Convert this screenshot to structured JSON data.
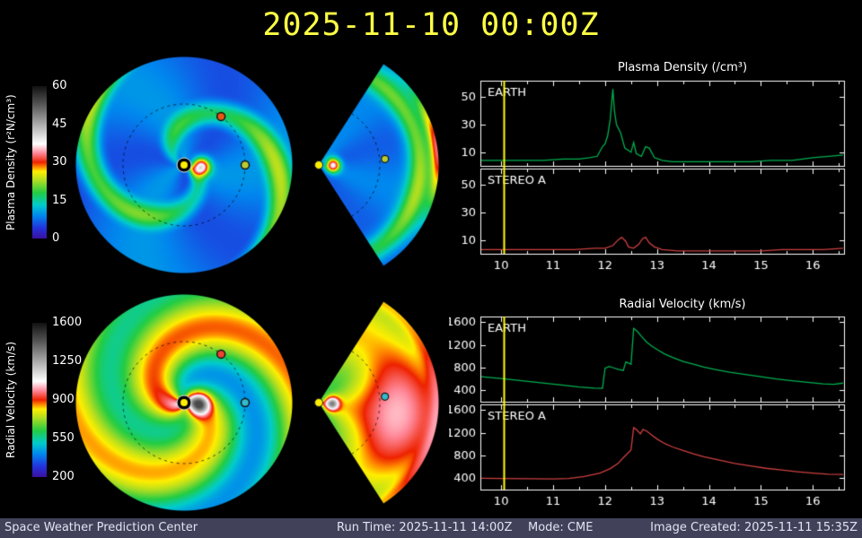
{
  "title": "2025-11-10 00:00Z",
  "colors": {
    "background": "#000000",
    "title_text": "#ffff44",
    "axis": "#ffffff",
    "timeline": "#ffff00",
    "sun": "#ffee00",
    "footer_bg": "#41415a",
    "footer_text": "#e2e2f2"
  },
  "colormap": [
    {
      "p": 0.0,
      "c": "#3a10a0"
    },
    {
      "p": 0.07,
      "c": "#2233dd"
    },
    {
      "p": 0.15,
      "c": "#0088ee"
    },
    {
      "p": 0.22,
      "c": "#00cccc"
    },
    {
      "p": 0.3,
      "c": "#22cc44"
    },
    {
      "p": 0.38,
      "c": "#aadd22"
    },
    {
      "p": 0.44,
      "c": "#ffee00"
    },
    {
      "p": 0.47,
      "c": "#ff8800"
    },
    {
      "p": 0.5,
      "c": "#ee2200"
    },
    {
      "p": 0.56,
      "c": "#ff8899"
    },
    {
      "p": 0.62,
      "c": "#ffffff"
    },
    {
      "p": 0.75,
      "c": "#aaaaaa"
    },
    {
      "p": 0.88,
      "c": "#555555"
    },
    {
      "p": 1.0,
      "c": "#111111"
    }
  ],
  "density_map": {
    "colorbar_label": "Plasma Density (r²N/cm³)",
    "colorbar_ticks": [
      "60",
      "45",
      "30",
      "15",
      "0"
    ],
    "stereo_a_color": "#ee5511",
    "earth_color": "#b8cc33"
  },
  "velocity_map": {
    "colorbar_label": "Radial Velocity (km/s)",
    "colorbar_ticks": [
      "1600",
      "1250",
      "900",
      "550",
      "200"
    ],
    "stereo_a_color": "#ee4433",
    "earth_color": "#33bbcc"
  },
  "footer": {
    "left": "Space Weather Prediction Center",
    "run_time": "Run Time: 2025-11-11 14:00Z",
    "mode": "Mode: CME",
    "right": "Image Created: 2025-11-11 15:35Z"
  },
  "chart_data": [
    {
      "type": "line",
      "title": "Plasma Density (/cm³)",
      "xlim": [
        9.6,
        16.6
      ],
      "xticks": [
        10,
        11,
        12,
        13,
        14,
        15,
        16
      ],
      "timeline_x": 10.05,
      "legend_position": "inside-top-left",
      "grid": false,
      "panels": [
        {
          "label": "EARTH",
          "color": "#00b050",
          "ylim": [
            0,
            62
          ],
          "yticks": [
            10,
            30,
            50
          ],
          "series": [
            [
              9.6,
              4
            ],
            [
              10,
              4
            ],
            [
              10.4,
              4
            ],
            [
              10.8,
              4
            ],
            [
              11.2,
              5
            ],
            [
              11.5,
              5
            ],
            [
              11.7,
              6
            ],
            [
              11.85,
              7
            ],
            [
              11.95,
              14
            ],
            [
              12.0,
              16
            ],
            [
              12.05,
              22
            ],
            [
              12.1,
              34
            ],
            [
              12.15,
              56
            ],
            [
              12.18,
              40
            ],
            [
              12.22,
              30
            ],
            [
              12.3,
              24
            ],
            [
              12.38,
              13
            ],
            [
              12.5,
              10
            ],
            [
              12.55,
              17
            ],
            [
              12.6,
              9
            ],
            [
              12.7,
              7
            ],
            [
              12.78,
              14
            ],
            [
              12.85,
              13
            ],
            [
              12.95,
              6
            ],
            [
              13.1,
              4
            ],
            [
              13.3,
              3
            ],
            [
              13.6,
              3
            ],
            [
              14,
              3
            ],
            [
              14.4,
              3
            ],
            [
              14.8,
              3
            ],
            [
              15.2,
              4
            ],
            [
              15.6,
              4
            ],
            [
              16,
              6
            ],
            [
              16.3,
              7
            ],
            [
              16.6,
              8
            ]
          ]
        },
        {
          "label": "STEREO A",
          "color": "#cc4040",
          "ylim": [
            0,
            62
          ],
          "yticks": [
            10,
            30,
            50
          ],
          "series": [
            [
              9.6,
              3
            ],
            [
              10.2,
              3
            ],
            [
              10.8,
              3
            ],
            [
              11.4,
              3
            ],
            [
              11.8,
              4
            ],
            [
              12.0,
              4
            ],
            [
              12.15,
              6
            ],
            [
              12.25,
              10
            ],
            [
              12.32,
              12
            ],
            [
              12.4,
              9
            ],
            [
              12.45,
              5
            ],
            [
              12.55,
              4
            ],
            [
              12.65,
              7
            ],
            [
              12.72,
              11
            ],
            [
              12.78,
              12
            ],
            [
              12.85,
              8
            ],
            [
              12.95,
              5
            ],
            [
              13.1,
              3
            ],
            [
              13.4,
              2
            ],
            [
              13.8,
              2
            ],
            [
              14.2,
              2
            ],
            [
              14.6,
              2
            ],
            [
              15,
              2
            ],
            [
              15.4,
              3
            ],
            [
              15.8,
              3
            ],
            [
              16.2,
              3
            ],
            [
              16.6,
              4
            ]
          ]
        }
      ]
    },
    {
      "type": "line",
      "title": "Radial Velocity (km/s)",
      "xlim": [
        9.6,
        16.6
      ],
      "xticks": [
        10,
        11,
        12,
        13,
        14,
        15,
        16
      ],
      "timeline_x": 10.05,
      "legend_position": "inside-top-left",
      "grid": false,
      "panels": [
        {
          "label": "EARTH",
          "color": "#00b050",
          "ylim": [
            200,
            1700
          ],
          "yticks": [
            400,
            800,
            1200,
            1600
          ],
          "series": [
            [
              9.6,
              640
            ],
            [
              10,
              610
            ],
            [
              10.4,
              570
            ],
            [
              10.8,
              530
            ],
            [
              11.2,
              490
            ],
            [
              11.5,
              460
            ],
            [
              11.8,
              440
            ],
            [
              11.95,
              435
            ],
            [
              12.0,
              790
            ],
            [
              12.08,
              820
            ],
            [
              12.15,
              800
            ],
            [
              12.25,
              770
            ],
            [
              12.35,
              750
            ],
            [
              12.4,
              900
            ],
            [
              12.5,
              860
            ],
            [
              12.55,
              1490
            ],
            [
              12.62,
              1440
            ],
            [
              12.7,
              1350
            ],
            [
              12.8,
              1250
            ],
            [
              12.9,
              1180
            ],
            [
              13.0,
              1120
            ],
            [
              13.15,
              1040
            ],
            [
              13.3,
              980
            ],
            [
              13.5,
              910
            ],
            [
              13.7,
              860
            ],
            [
              13.9,
              810
            ],
            [
              14.1,
              770
            ],
            [
              14.4,
              720
            ],
            [
              14.7,
              680
            ],
            [
              15,
              640
            ],
            [
              15.3,
              600
            ],
            [
              15.6,
              570
            ],
            [
              15.9,
              540
            ],
            [
              16.2,
              515
            ],
            [
              16.4,
              505
            ],
            [
              16.6,
              530
            ]
          ]
        },
        {
          "label": "STEREO A",
          "color": "#cc4040",
          "ylim": [
            200,
            1700
          ],
          "yticks": [
            400,
            800,
            1200,
            1600
          ],
          "series": [
            [
              9.6,
              400
            ],
            [
              10,
              395
            ],
            [
              10.5,
              390
            ],
            [
              11,
              388
            ],
            [
              11.3,
              395
            ],
            [
              11.6,
              430
            ],
            [
              11.9,
              490
            ],
            [
              12.1,
              570
            ],
            [
              12.25,
              660
            ],
            [
              12.35,
              760
            ],
            [
              12.45,
              850
            ],
            [
              12.5,
              900
            ],
            [
              12.55,
              1290
            ],
            [
              12.6,
              1260
            ],
            [
              12.68,
              1180
            ],
            [
              12.73,
              1260
            ],
            [
              12.8,
              1230
            ],
            [
              12.9,
              1160
            ],
            [
              13,
              1090
            ],
            [
              13.15,
              1010
            ],
            [
              13.3,
              950
            ],
            [
              13.5,
              890
            ],
            [
              13.7,
              830
            ],
            [
              13.9,
              780
            ],
            [
              14.2,
              720
            ],
            [
              14.5,
              660
            ],
            [
              14.8,
              615
            ],
            [
              15.1,
              575
            ],
            [
              15.4,
              545
            ],
            [
              15.7,
              515
            ],
            [
              16,
              490
            ],
            [
              16.3,
              470
            ],
            [
              16.6,
              465
            ]
          ]
        }
      ]
    }
  ]
}
